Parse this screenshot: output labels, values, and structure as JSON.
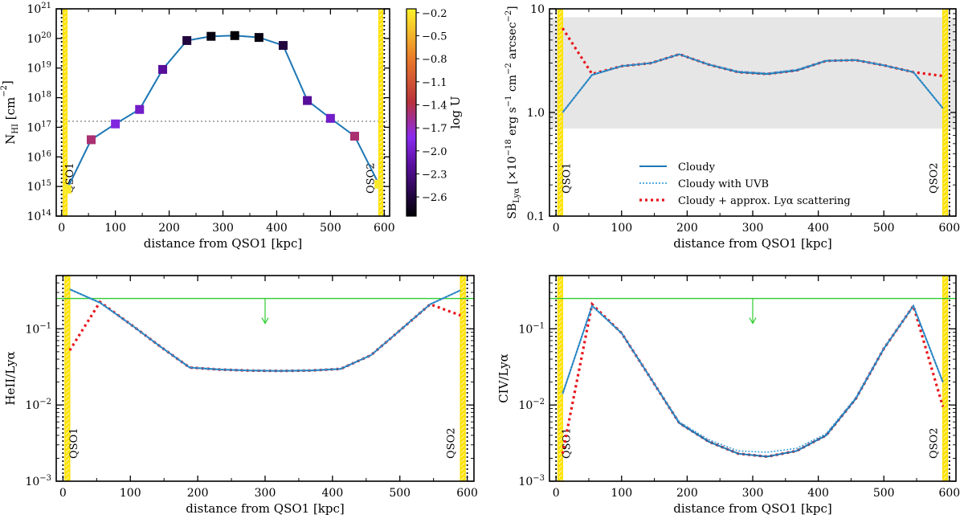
{
  "chart_data": [
    {
      "type": "scatter",
      "panel": "NHI",
      "xlabel": "distance from QSO1 [kpc]",
      "ylabel": "N_HI [cm^-2]",
      "yscale": "log",
      "xlim": [
        -10,
        610
      ],
      "ylim": [
        100000000000000.0,
        1e+21
      ],
      "xticks": [
        0,
        100,
        200,
        300,
        400,
        500,
        600
      ],
      "xtick_labels": [
        "0",
        "100",
        "200",
        "300",
        "400",
        "500",
        "600"
      ],
      "ytick_exps": [
        14,
        15,
        16,
        17,
        18,
        19,
        20,
        21
      ],
      "ytick_labels": [
        "10^14",
        "10^15",
        "10^16",
        "10^17",
        "10^18",
        "10^19",
        "10^20",
        "10^21"
      ],
      "threshold": 1.6e+17,
      "qso_labels": [
        "QSO1",
        "QSO2"
      ],
      "series": [
        {
          "name": "Cloudy",
          "x": [
            10,
            55,
            100,
            145,
            188,
            233,
            278,
            322,
            367,
            412,
            457,
            500,
            545,
            590
          ],
          "y": [
            800000000000000.0,
            3.8e+16,
            1.3e+17,
            4e+17,
            9e+18,
            8.5e+19,
            1.18e+20,
            1.25e+20,
            1.08e+20,
            5.8e+19,
            8e+17,
            2e+17,
            5e+16,
            1200000000000000.0
          ]
        },
        {
          "name": "Cloudy with UVB",
          "x": [
            10,
            55,
            100,
            145,
            188,
            233,
            278,
            322,
            367,
            412,
            457,
            500,
            545,
            590
          ],
          "y": [
            850000000000000.0,
            3.9e+16,
            1.3e+17,
            4.2e+17,
            9.5e+18,
            8.6e+19,
            1.18e+20,
            1.25e+20,
            1.08e+20,
            5.8e+19,
            8.2e+17,
            2e+17,
            5e+16,
            1200000000000000.0
          ]
        }
      ],
      "markers": {
        "x": [
          10,
          55,
          100,
          145,
          188,
          233,
          278,
          322,
          367,
          412,
          457,
          500,
          545,
          590
        ],
        "y": [
          800000000000000.0,
          3.8e+16,
          1.3e+17,
          4e+17,
          9e+18,
          8.5e+19,
          1.18e+20,
          1.25e+20,
          1.08e+20,
          5.8e+19,
          8e+17,
          2e+17,
          5e+16,
          1200000000000000.0
        ],
        "logU": [
          -0.2,
          -1.5,
          -1.9,
          -2.0,
          -2.2,
          -2.6,
          -2.8,
          -2.85,
          -2.8,
          -2.6,
          -2.2,
          -2.0,
          -1.5,
          -0.2
        ]
      },
      "colorbar": {
        "label": "log U",
        "range": [
          -2.85,
          -0.15
        ],
        "ticks": [
          -0.2,
          -0.5,
          -0.8,
          -1.1,
          -1.4,
          -1.7,
          -2.0,
          -2.3,
          -2.6
        ],
        "tick_labels": [
          "−0.2",
          "−0.5",
          "−0.8",
          "−1.1",
          "−1.4",
          "−1.7",
          "−2.0",
          "−2.3",
          "−2.6"
        ]
      }
    },
    {
      "type": "line",
      "panel": "SBLya",
      "xlabel": "distance from QSO1 [kpc]",
      "ylabel": "SB_Lyα [×10^-18 erg s^-1 cm^-2 arcsec^-2]",
      "yscale": "log",
      "xlim": [
        -10,
        610
      ],
      "ylim": [
        0.1,
        10
      ],
      "xticks": [
        0,
        100,
        200,
        300,
        400,
        500,
        600
      ],
      "xtick_labels": [
        "0",
        "100",
        "200",
        "300",
        "400",
        "500",
        "600"
      ],
      "yticks": [
        0.1,
        1.0,
        10
      ],
      "ytick_labels": [
        "0.1",
        "1.0",
        "10"
      ],
      "band": [
        0.7,
        8.3
      ],
      "qso_labels": [
        "QSO1",
        "QSO2"
      ],
      "legend": [
        "Cloudy",
        "Cloudy with UVB",
        "Cloudy + approx. Lyα scattering"
      ],
      "series": [
        {
          "name": "Cloudy",
          "x": [
            10,
            55,
            100,
            145,
            188,
            233,
            278,
            322,
            367,
            412,
            457,
            500,
            545,
            590
          ],
          "y": [
            1.0,
            2.3,
            2.8,
            3.0,
            3.65,
            2.9,
            2.45,
            2.35,
            2.55,
            3.15,
            3.2,
            2.85,
            2.45,
            1.1
          ]
        },
        {
          "name": "Cloudy with UVB",
          "x": [
            10,
            55,
            100,
            145,
            188,
            233,
            278,
            322,
            367,
            412,
            457,
            500,
            545,
            590
          ],
          "y": [
            1.0,
            2.32,
            2.82,
            3.0,
            3.65,
            2.92,
            2.5,
            2.4,
            2.6,
            3.18,
            3.22,
            2.87,
            2.45,
            1.1
          ]
        },
        {
          "name": "Cloudy + approx. Lyα scattering",
          "x": [
            10,
            55,
            100,
            145,
            188,
            233,
            278,
            322,
            367,
            412,
            457,
            500,
            545,
            590
          ],
          "y": [
            6.5,
            2.35,
            2.8,
            3.0,
            3.65,
            2.9,
            2.45,
            2.35,
            2.55,
            3.15,
            3.2,
            2.85,
            2.45,
            2.25
          ]
        }
      ]
    },
    {
      "type": "line",
      "panel": "HeII",
      "xlabel": "distance from QSO1 [kpc]",
      "ylabel": "HeII/Lyα",
      "yscale": "log",
      "xlim": [
        -10,
        610
      ],
      "ylim": [
        0.001,
        0.5
      ],
      "xticks": [
        0,
        100,
        200,
        300,
        400,
        500,
        600
      ],
      "xtick_labels": [
        "0",
        "100",
        "200",
        "300",
        "400",
        "500",
        "600"
      ],
      "ytick_exps": [
        -3,
        -2,
        -1
      ],
      "ytick_labels": [
        "10^-3",
        "10^-2",
        "10^-1"
      ],
      "upper_limit": 0.25,
      "upper_limit_arrow_x": 300,
      "qso_labels": [
        "QSO1",
        "QSO2"
      ],
      "series": [
        {
          "name": "Cloudy",
          "x": [
            10,
            55,
            100,
            145,
            188,
            233,
            278,
            322,
            367,
            412,
            457,
            500,
            545,
            590
          ],
          "y": [
            0.33,
            0.22,
            0.115,
            0.058,
            0.031,
            0.0292,
            0.0283,
            0.028,
            0.0284,
            0.0298,
            0.045,
            0.095,
            0.21,
            0.32
          ]
        },
        {
          "name": "Cloudy with UVB",
          "x": [
            10,
            55,
            100,
            145,
            188,
            233,
            278,
            322,
            367,
            412,
            457,
            500,
            545,
            590
          ],
          "y": [
            0.33,
            0.22,
            0.115,
            0.058,
            0.0312,
            0.0295,
            0.0286,
            0.0283,
            0.0287,
            0.03,
            0.045,
            0.095,
            0.21,
            0.32
          ]
        },
        {
          "name": "Cloudy + approx. Lyα scattering",
          "x": [
            10,
            55,
            100,
            145,
            188,
            233,
            278,
            322,
            367,
            412,
            457,
            500,
            545,
            590
          ],
          "y": [
            0.052,
            0.225,
            0.115,
            0.058,
            0.031,
            0.0292,
            0.0283,
            0.028,
            0.0284,
            0.0298,
            0.045,
            0.095,
            0.21,
            0.15
          ]
        }
      ]
    },
    {
      "type": "line",
      "panel": "CIV",
      "xlabel": "distance from QSO1 [kpc]",
      "ylabel": "CIV/Lyα",
      "yscale": "log",
      "xlim": [
        -10,
        610
      ],
      "ylim": [
        0.001,
        0.5
      ],
      "xticks": [
        0,
        100,
        200,
        300,
        400,
        500,
        600
      ],
      "xtick_labels": [
        "0",
        "100",
        "200",
        "300",
        "400",
        "500",
        "600"
      ],
      "ytick_exps": [
        -3,
        -2,
        -1
      ],
      "ytick_labels": [
        "10^-3",
        "10^-2",
        "10^-1"
      ],
      "upper_limit": 0.25,
      "upper_limit_arrow_x": 300,
      "qso_labels": [
        "QSO1",
        "QSO2"
      ],
      "series": [
        {
          "name": "Cloudy",
          "x": [
            10,
            55,
            100,
            145,
            188,
            233,
            278,
            322,
            367,
            412,
            457,
            500,
            545,
            590
          ],
          "y": [
            0.014,
            0.2,
            0.088,
            0.022,
            0.0058,
            0.0033,
            0.0023,
            0.0021,
            0.0025,
            0.004,
            0.012,
            0.055,
            0.2,
            0.02
          ]
        },
        {
          "name": "Cloudy with UVB",
          "x": [
            10,
            55,
            100,
            145,
            188,
            233,
            278,
            322,
            367,
            412,
            457,
            500,
            545,
            590
          ],
          "y": [
            0.014,
            0.2,
            0.088,
            0.022,
            0.006,
            0.0035,
            0.0025,
            0.0024,
            0.0027,
            0.0042,
            0.0125,
            0.056,
            0.2,
            0.02
          ]
        },
        {
          "name": "Cloudy + approx. Lyα scattering",
          "x": [
            10,
            55,
            100,
            145,
            188,
            233,
            278,
            322,
            367,
            412,
            457,
            500,
            545,
            590
          ],
          "y": [
            0.0023,
            0.21,
            0.088,
            0.022,
            0.0058,
            0.0033,
            0.0023,
            0.0021,
            0.0025,
            0.004,
            0.012,
            0.055,
            0.2,
            0.0095
          ]
        }
      ]
    }
  ],
  "colors": {
    "cloudy": "#1f77b4",
    "uvb": "#3ea0dc",
    "scatter": "#e8141b",
    "band": "#e6e6e6",
    "qso_band": "#ffe200",
    "limit": "#2ecc2e"
  }
}
